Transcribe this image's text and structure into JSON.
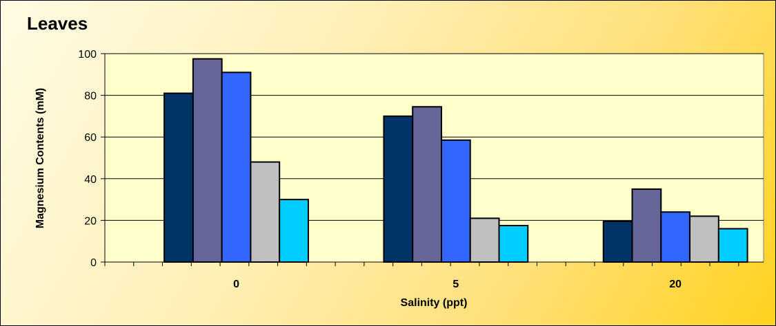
{
  "chart_data": {
    "type": "bar",
    "title": "Leaves",
    "xlabel": "Salinity (ppt)",
    "ylabel": "Magnesium Contents (mM)",
    "categories": [
      "0",
      "5",
      "20"
    ],
    "ylim": [
      0,
      100
    ],
    "yticks": [
      "0",
      "20",
      "40",
      "60",
      "80",
      "100"
    ],
    "grid": true,
    "legend": "none",
    "plot_background": "#ffffcc",
    "series": [
      {
        "color": "#003366",
        "values": [
          81,
          70,
          19.5
        ]
      },
      {
        "color": "#666699",
        "values": [
          97.5,
          74.5,
          35
        ]
      },
      {
        "color": "#3366ff",
        "values": [
          91,
          58.5,
          24
        ]
      },
      {
        "color": "#c0c0c0",
        "values": [
          48,
          21,
          22
        ]
      },
      {
        "color": "#00ccff",
        "values": [
          30,
          17.5,
          16
        ]
      }
    ]
  }
}
